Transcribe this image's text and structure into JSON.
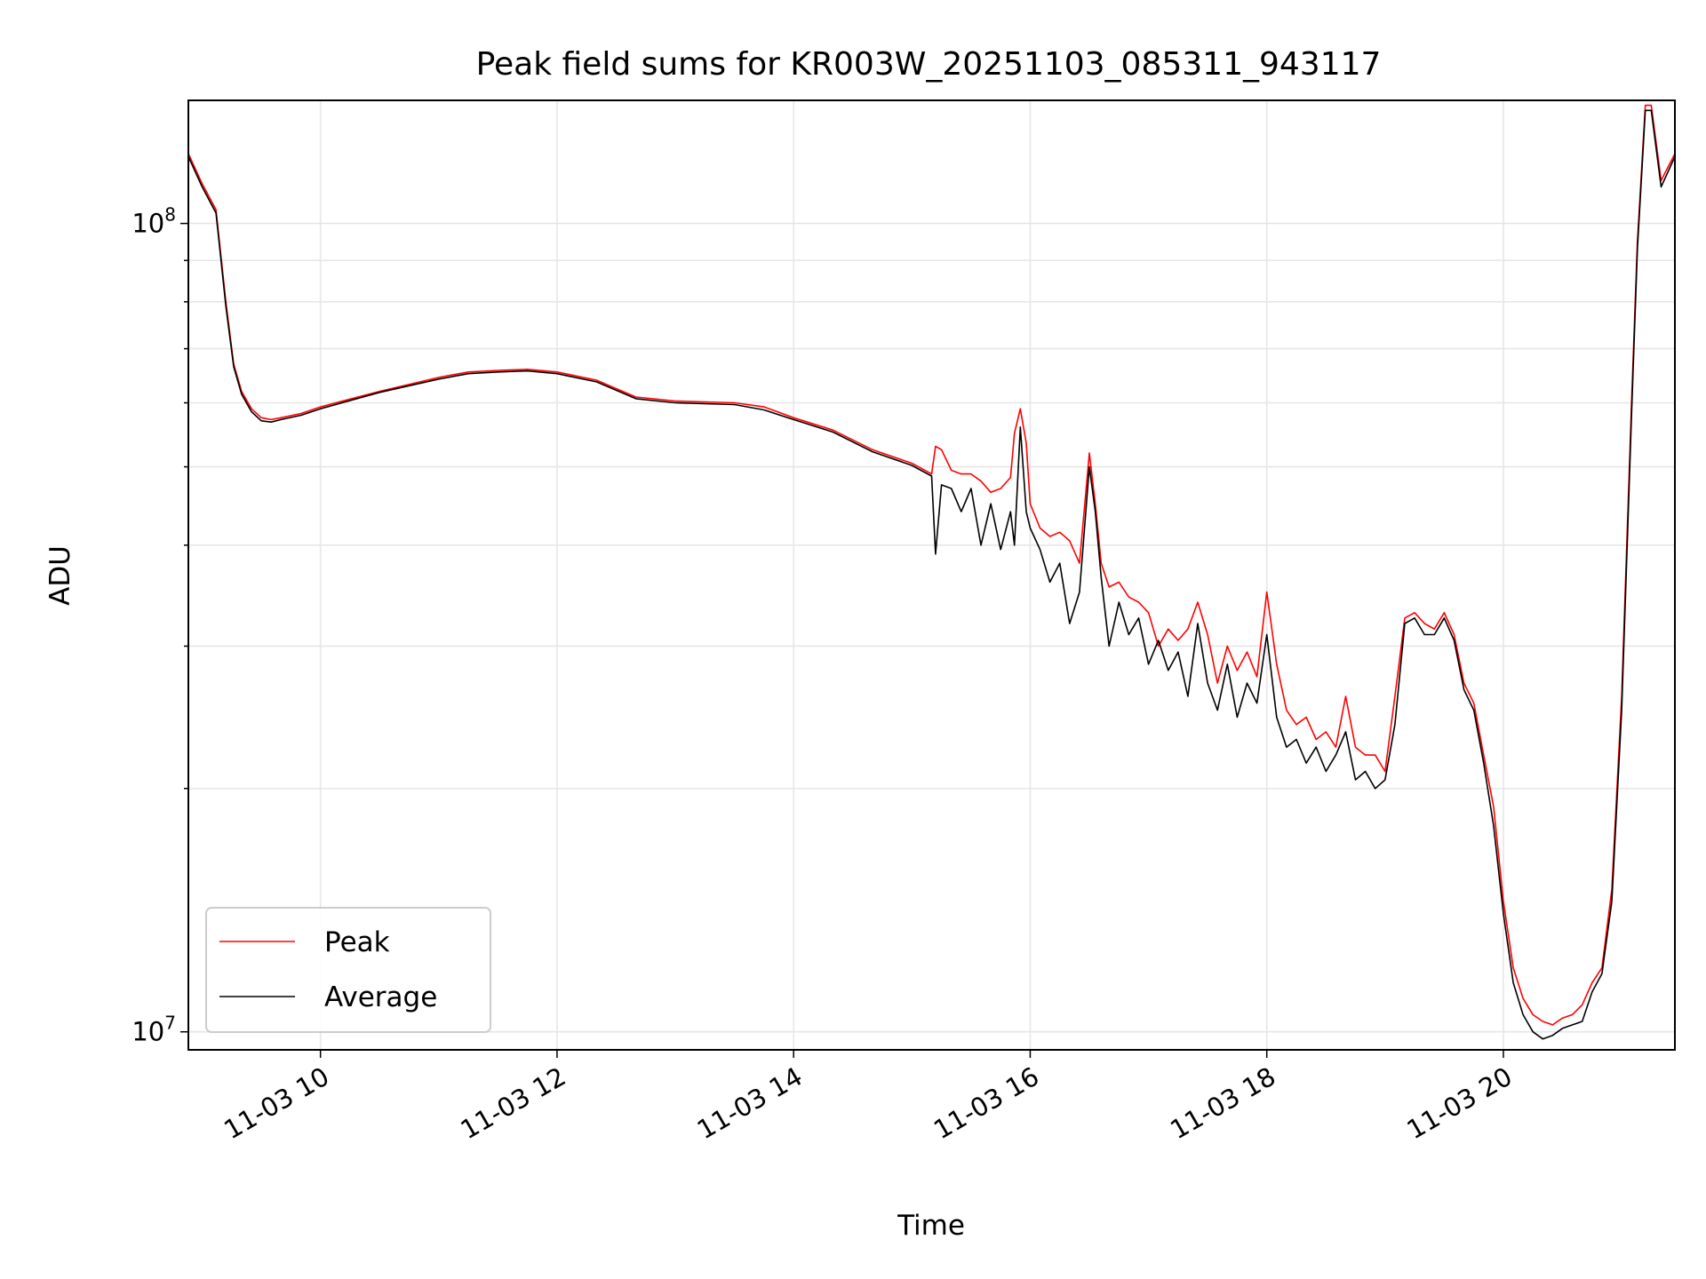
{
  "chart_data": {
    "type": "line",
    "title": "Peak field sums for KR003W_20251103_085311_943117",
    "xlabel": "Time",
    "ylabel": "ADU",
    "yscale": "log",
    "xlim": [
      "2025-11-03 08:53",
      "2025-11-03 21:27"
    ],
    "ylim": [
      9500000,
      142000000
    ],
    "x_ticks": [
      "11-03 10",
      "11-03 12",
      "11-03 14",
      "11-03 16",
      "11-03 18",
      "11-03 20"
    ],
    "y_ticks": [
      {
        "value": 10000000,
        "base": "10",
        "exp": "7"
      },
      {
        "value": 100000000,
        "base": "10",
        "exp": "8"
      }
    ],
    "grid": true,
    "legend_position": "lower-left",
    "series": [
      {
        "name": "Peak",
        "color": "#ff0000",
        "x": [
          "2025-11-03 08:53",
          "2025-11-03 09:00",
          "2025-11-03 09:07",
          "2025-11-03 09:12",
          "2025-11-03 09:16",
          "2025-11-03 09:20",
          "2025-11-03 09:25",
          "2025-11-03 09:30",
          "2025-11-03 09:35",
          "2025-11-03 09:40",
          "2025-11-03 09:50",
          "2025-11-03 10:00",
          "2025-11-03 10:30",
          "2025-11-03 11:00",
          "2025-11-03 11:15",
          "2025-11-03 11:30",
          "2025-11-03 11:45",
          "2025-11-03 12:00",
          "2025-11-03 12:20",
          "2025-11-03 12:40",
          "2025-11-03 13:00",
          "2025-11-03 13:30",
          "2025-11-03 13:45",
          "2025-11-03 14:00",
          "2025-11-03 14:20",
          "2025-11-03 14:40",
          "2025-11-03 15:00",
          "2025-11-03 15:10",
          "2025-11-03 15:12",
          "2025-11-03 15:15",
          "2025-11-03 15:20",
          "2025-11-03 15:25",
          "2025-11-03 15:30",
          "2025-11-03 15:35",
          "2025-11-03 15:40",
          "2025-11-03 15:45",
          "2025-11-03 15:50",
          "2025-11-03 15:52",
          "2025-11-03 15:55",
          "2025-11-03 15:58",
          "2025-11-03 16:00",
          "2025-11-03 16:05",
          "2025-11-03 16:10",
          "2025-11-03 16:15",
          "2025-11-03 16:20",
          "2025-11-03 16:25",
          "2025-11-03 16:30",
          "2025-11-03 16:33",
          "2025-11-03 16:36",
          "2025-11-03 16:40",
          "2025-11-03 16:45",
          "2025-11-03 16:50",
          "2025-11-03 16:55",
          "2025-11-03 17:00",
          "2025-11-03 17:05",
          "2025-11-03 17:10",
          "2025-11-03 17:15",
          "2025-11-03 17:20",
          "2025-11-03 17:25",
          "2025-11-03 17:30",
          "2025-11-03 17:35",
          "2025-11-03 17:40",
          "2025-11-03 17:45",
          "2025-11-03 17:50",
          "2025-11-03 17:55",
          "2025-11-03 18:00",
          "2025-11-03 18:05",
          "2025-11-03 18:10",
          "2025-11-03 18:15",
          "2025-11-03 18:20",
          "2025-11-03 18:25",
          "2025-11-03 18:30",
          "2025-11-03 18:35",
          "2025-11-03 18:40",
          "2025-11-03 18:45",
          "2025-11-03 18:50",
          "2025-11-03 18:55",
          "2025-11-03 19:00",
          "2025-11-03 19:05",
          "2025-11-03 19:10",
          "2025-11-03 19:15",
          "2025-11-03 19:20",
          "2025-11-03 19:25",
          "2025-11-03 19:30",
          "2025-11-03 19:35",
          "2025-11-03 19:40",
          "2025-11-03 19:45",
          "2025-11-03 19:50",
          "2025-11-03 19:55",
          "2025-11-03 20:00",
          "2025-11-03 20:05",
          "2025-11-03 20:10",
          "2025-11-03 20:15",
          "2025-11-03 20:20",
          "2025-11-03 20:25",
          "2025-11-03 20:30",
          "2025-11-03 20:35",
          "2025-11-03 20:40",
          "2025-11-03 20:45",
          "2025-11-03 20:50",
          "2025-11-03 20:55",
          "2025-11-03 21:00",
          "2025-11-03 21:05",
          "2025-11-03 21:08",
          "2025-11-03 21:12",
          "2025-11-03 21:15",
          "2025-11-03 21:20",
          "2025-11-03 21:27"
        ],
        "values": [
          122000000,
          112000000,
          104000000,
          80000000,
          67000000,
          62000000,
          59000000,
          57500000,
          57200000,
          57500000,
          58200000,
          59300000,
          62000000,
          64500000,
          65500000,
          65800000,
          66000000,
          65500000,
          64000000,
          61000000,
          60300000,
          60000000,
          59300000,
          57500000,
          55500000,
          52500000,
          50500000,
          49000000,
          53000000,
          52500000,
          49500000,
          49000000,
          49000000,
          48000000,
          46500000,
          47000000,
          48500000,
          55000000,
          59000000,
          53500000,
          45000000,
          42000000,
          41000000,
          41500000,
          40500000,
          38000000,
          52000000,
          45000000,
          38000000,
          35500000,
          36000000,
          34500000,
          34000000,
          33000000,
          30000000,
          31500000,
          30500000,
          31500000,
          34000000,
          31000000,
          27000000,
          30000000,
          28000000,
          29500000,
          27500000,
          35000000,
          28500000,
          25000000,
          24000000,
          24500000,
          23000000,
          23500000,
          22500000,
          26000000,
          22500000,
          22000000,
          22000000,
          21000000,
          26000000,
          32500000,
          33000000,
          32000000,
          31500000,
          33000000,
          31000000,
          27000000,
          25500000,
          22000000,
          19000000,
          14500000,
          12000000,
          11000000,
          10500000,
          10300000,
          10200000,
          10400000,
          10500000,
          10800000,
          11500000,
          12000000,
          15000000,
          26000000,
          60000000,
          95000000,
          140000000,
          140000000,
          113000000,
          122000000
        ]
      },
      {
        "name": "Average",
        "color": "#000000",
        "x": [
          "2025-11-03 08:53",
          "2025-11-03 09:00",
          "2025-11-03 09:07",
          "2025-11-03 09:12",
          "2025-11-03 09:16",
          "2025-11-03 09:20",
          "2025-11-03 09:25",
          "2025-11-03 09:30",
          "2025-11-03 09:35",
          "2025-11-03 09:40",
          "2025-11-03 09:50",
          "2025-11-03 10:00",
          "2025-11-03 10:30",
          "2025-11-03 11:00",
          "2025-11-03 11:15",
          "2025-11-03 11:30",
          "2025-11-03 11:45",
          "2025-11-03 12:00",
          "2025-11-03 12:20",
          "2025-11-03 12:40",
          "2025-11-03 13:00",
          "2025-11-03 13:30",
          "2025-11-03 13:45",
          "2025-11-03 14:00",
          "2025-11-03 14:20",
          "2025-11-03 14:40",
          "2025-11-03 15:00",
          "2025-11-03 15:10",
          "2025-11-03 15:12",
          "2025-11-03 15:15",
          "2025-11-03 15:20",
          "2025-11-03 15:25",
          "2025-11-03 15:30",
          "2025-11-03 15:35",
          "2025-11-03 15:40",
          "2025-11-03 15:45",
          "2025-11-03 15:50",
          "2025-11-03 15:52",
          "2025-11-03 15:55",
          "2025-11-03 15:58",
          "2025-11-03 16:00",
          "2025-11-03 16:05",
          "2025-11-03 16:10",
          "2025-11-03 16:15",
          "2025-11-03 16:20",
          "2025-11-03 16:25",
          "2025-11-03 16:30",
          "2025-11-03 16:33",
          "2025-11-03 16:36",
          "2025-11-03 16:40",
          "2025-11-03 16:45",
          "2025-11-03 16:50",
          "2025-11-03 16:55",
          "2025-11-03 17:00",
          "2025-11-03 17:05",
          "2025-11-03 17:10",
          "2025-11-03 17:15",
          "2025-11-03 17:20",
          "2025-11-03 17:25",
          "2025-11-03 17:30",
          "2025-11-03 17:35",
          "2025-11-03 17:40",
          "2025-11-03 17:45",
          "2025-11-03 17:50",
          "2025-11-03 17:55",
          "2025-11-03 18:00",
          "2025-11-03 18:05",
          "2025-11-03 18:10",
          "2025-11-03 18:15",
          "2025-11-03 18:20",
          "2025-11-03 18:25",
          "2025-11-03 18:30",
          "2025-11-03 18:35",
          "2025-11-03 18:40",
          "2025-11-03 18:45",
          "2025-11-03 18:50",
          "2025-11-03 18:55",
          "2025-11-03 19:00",
          "2025-11-03 19:05",
          "2025-11-03 19:10",
          "2025-11-03 19:15",
          "2025-11-03 19:20",
          "2025-11-03 19:25",
          "2025-11-03 19:30",
          "2025-11-03 19:35",
          "2025-11-03 19:40",
          "2025-11-03 19:45",
          "2025-11-03 19:50",
          "2025-11-03 19:55",
          "2025-11-03 20:00",
          "2025-11-03 20:05",
          "2025-11-03 20:10",
          "2025-11-03 20:15",
          "2025-11-03 20:20",
          "2025-11-03 20:25",
          "2025-11-03 20:30",
          "2025-11-03 20:35",
          "2025-11-03 20:40",
          "2025-11-03 20:45",
          "2025-11-03 20:50",
          "2025-11-03 20:55",
          "2025-11-03 21:00",
          "2025-11-03 21:05",
          "2025-11-03 21:08",
          "2025-11-03 21:12",
          "2025-11-03 21:15",
          "2025-11-03 21:20",
          "2025-11-03 21:27"
        ],
        "values": [
          121000000,
          111000000,
          103000000,
          79000000,
          66500000,
          61500000,
          58500000,
          57000000,
          56800000,
          57200000,
          57900000,
          59000000,
          61800000,
          64200000,
          65200000,
          65500000,
          65700000,
          65200000,
          63700000,
          60700000,
          60000000,
          59700000,
          58800000,
          57200000,
          55200000,
          52200000,
          50200000,
          48700000,
          39000000,
          47500000,
          47000000,
          44000000,
          47000000,
          40000000,
          45000000,
          39500000,
          44000000,
          40000000,
          56000000,
          44000000,
          42000000,
          39500000,
          36000000,
          38000000,
          32000000,
          35000000,
          50000000,
          44000000,
          36500000,
          30000000,
          34000000,
          31000000,
          32500000,
          28500000,
          30500000,
          28000000,
          29500000,
          26000000,
          32000000,
          27000000,
          25000000,
          28500000,
          24500000,
          27000000,
          25500000,
          31000000,
          24500000,
          22500000,
          23000000,
          21500000,
          22500000,
          21000000,
          22000000,
          23500000,
          20500000,
          21000000,
          20000000,
          20500000,
          24000000,
          32000000,
          32500000,
          31000000,
          31000000,
          32500000,
          30500000,
          26500000,
          25000000,
          21500000,
          18000000,
          14000000,
          11500000,
          10500000,
          10000000,
          9800000,
          9900000,
          10100000,
          10200000,
          10300000,
          11200000,
          11800000,
          14500000,
          25000000,
          58000000,
          93000000,
          138000000,
          138000000,
          111000000,
          121000000
        ]
      }
    ]
  }
}
